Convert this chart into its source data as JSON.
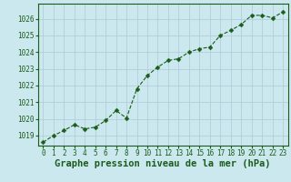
{
  "x": [
    0,
    1,
    2,
    3,
    4,
    5,
    6,
    7,
    8,
    9,
    10,
    11,
    12,
    13,
    14,
    15,
    16,
    17,
    18,
    19,
    20,
    21,
    22,
    23
  ],
  "y": [
    1018.6,
    1019.0,
    1019.3,
    1019.65,
    1019.4,
    1019.5,
    1019.9,
    1020.5,
    1020.05,
    1021.8,
    1022.6,
    1023.1,
    1023.5,
    1023.6,
    1024.0,
    1024.2,
    1024.3,
    1025.0,
    1025.3,
    1025.65,
    1026.2,
    1026.2,
    1026.05,
    1026.4
  ],
  "line_color": "#1a5c1a",
  "marker": "D",
  "marker_size": 2.5,
  "bg_color": "#cce8ef",
  "grid_color": "#b0c8d8",
  "axis_color": "#1a5c1a",
  "xlabel": "Graphe pression niveau de la mer (hPa)",
  "xlabel_fontsize": 7.5,
  "ylim": [
    1018.4,
    1026.9
  ],
  "yticks": [
    1019,
    1020,
    1021,
    1022,
    1023,
    1024,
    1025,
    1026
  ],
  "xlim": [
    -0.5,
    23.5
  ],
  "xticks": [
    0,
    1,
    2,
    3,
    4,
    5,
    6,
    7,
    8,
    9,
    10,
    11,
    12,
    13,
    14,
    15,
    16,
    17,
    18,
    19,
    20,
    21,
    22,
    23
  ],
  "tick_fontsize": 5.5,
  "spine_color": "#1a5c1a"
}
